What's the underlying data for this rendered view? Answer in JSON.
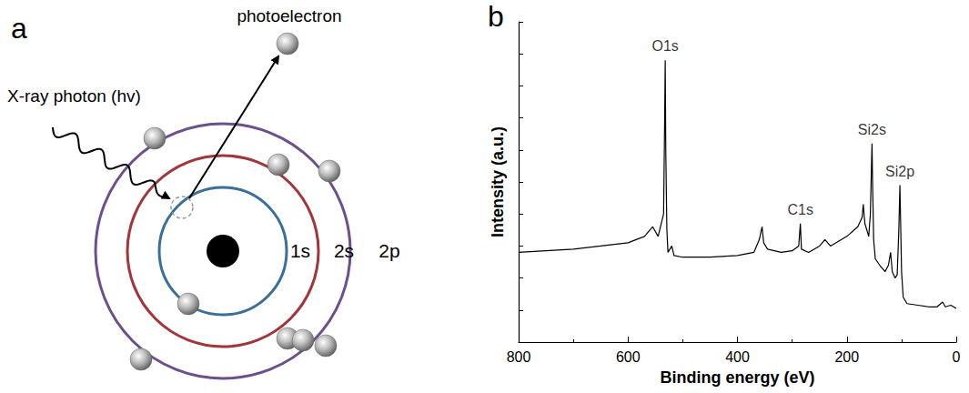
{
  "diagram": {
    "panel_label": "a",
    "photoelectron": "photoelectron",
    "photon": "X-ray photon (hv)",
    "shells": [
      "1s",
      "2s",
      "2p"
    ]
  },
  "chart_data": {
    "panel_label": "b",
    "type": "line",
    "xlabel": "Binding energy (eV)",
    "ylabel": "Intensity (a.u.)",
    "x": [
      800,
      700,
      600,
      570,
      555,
      545,
      535,
      533,
      532,
      531,
      529,
      527,
      520,
      516,
      500,
      450,
      400,
      370,
      360,
      355,
      352,
      345,
      320,
      300,
      288,
      285,
      283,
      270,
      250,
      240,
      230,
      200,
      180,
      172,
      170,
      167,
      160,
      157,
      155,
      154,
      153,
      151,
      148,
      140,
      130,
      124,
      120,
      117,
      112,
      108,
      105,
      103,
      102,
      100,
      97,
      90,
      70,
      50,
      35,
      25,
      20,
      10,
      0
    ],
    "values": [
      28,
      29,
      31,
      33,
      36,
      33,
      40,
      70,
      88,
      60,
      35,
      28,
      30,
      27,
      26.5,
      26.5,
      27,
      28,
      32,
      36,
      31,
      29,
      28,
      28.5,
      30,
      37,
      29,
      28,
      30,
      32,
      30,
      33,
      36,
      39,
      43,
      37,
      33,
      40,
      55,
      62,
      50,
      32,
      26,
      24,
      22,
      24,
      28,
      22,
      20,
      21,
      35,
      49,
      40,
      22,
      14,
      12,
      11.5,
      11,
      11,
      12.5,
      11,
      11.5,
      10.5
    ],
    "color": "#000000",
    "xlim": [
      800,
      0
    ],
    "xticks": [
      800,
      600,
      400,
      200,
      0
    ],
    "ylim": [
      0,
      100
    ],
    "yticks": [
      0,
      10,
      20,
      30,
      40,
      50,
      60,
      70,
      80,
      90,
      100
    ],
    "tick_labels": "x",
    "annotations": [
      {
        "text": "O1s",
        "x": 532,
        "y": 89
      },
      {
        "text": "C1s",
        "x": 285,
        "y": 38
      },
      {
        "text": "Si2s",
        "x": 154,
        "y": 63
      },
      {
        "text": "Si2p",
        "x": 103,
        "y": 50
      }
    ]
  }
}
